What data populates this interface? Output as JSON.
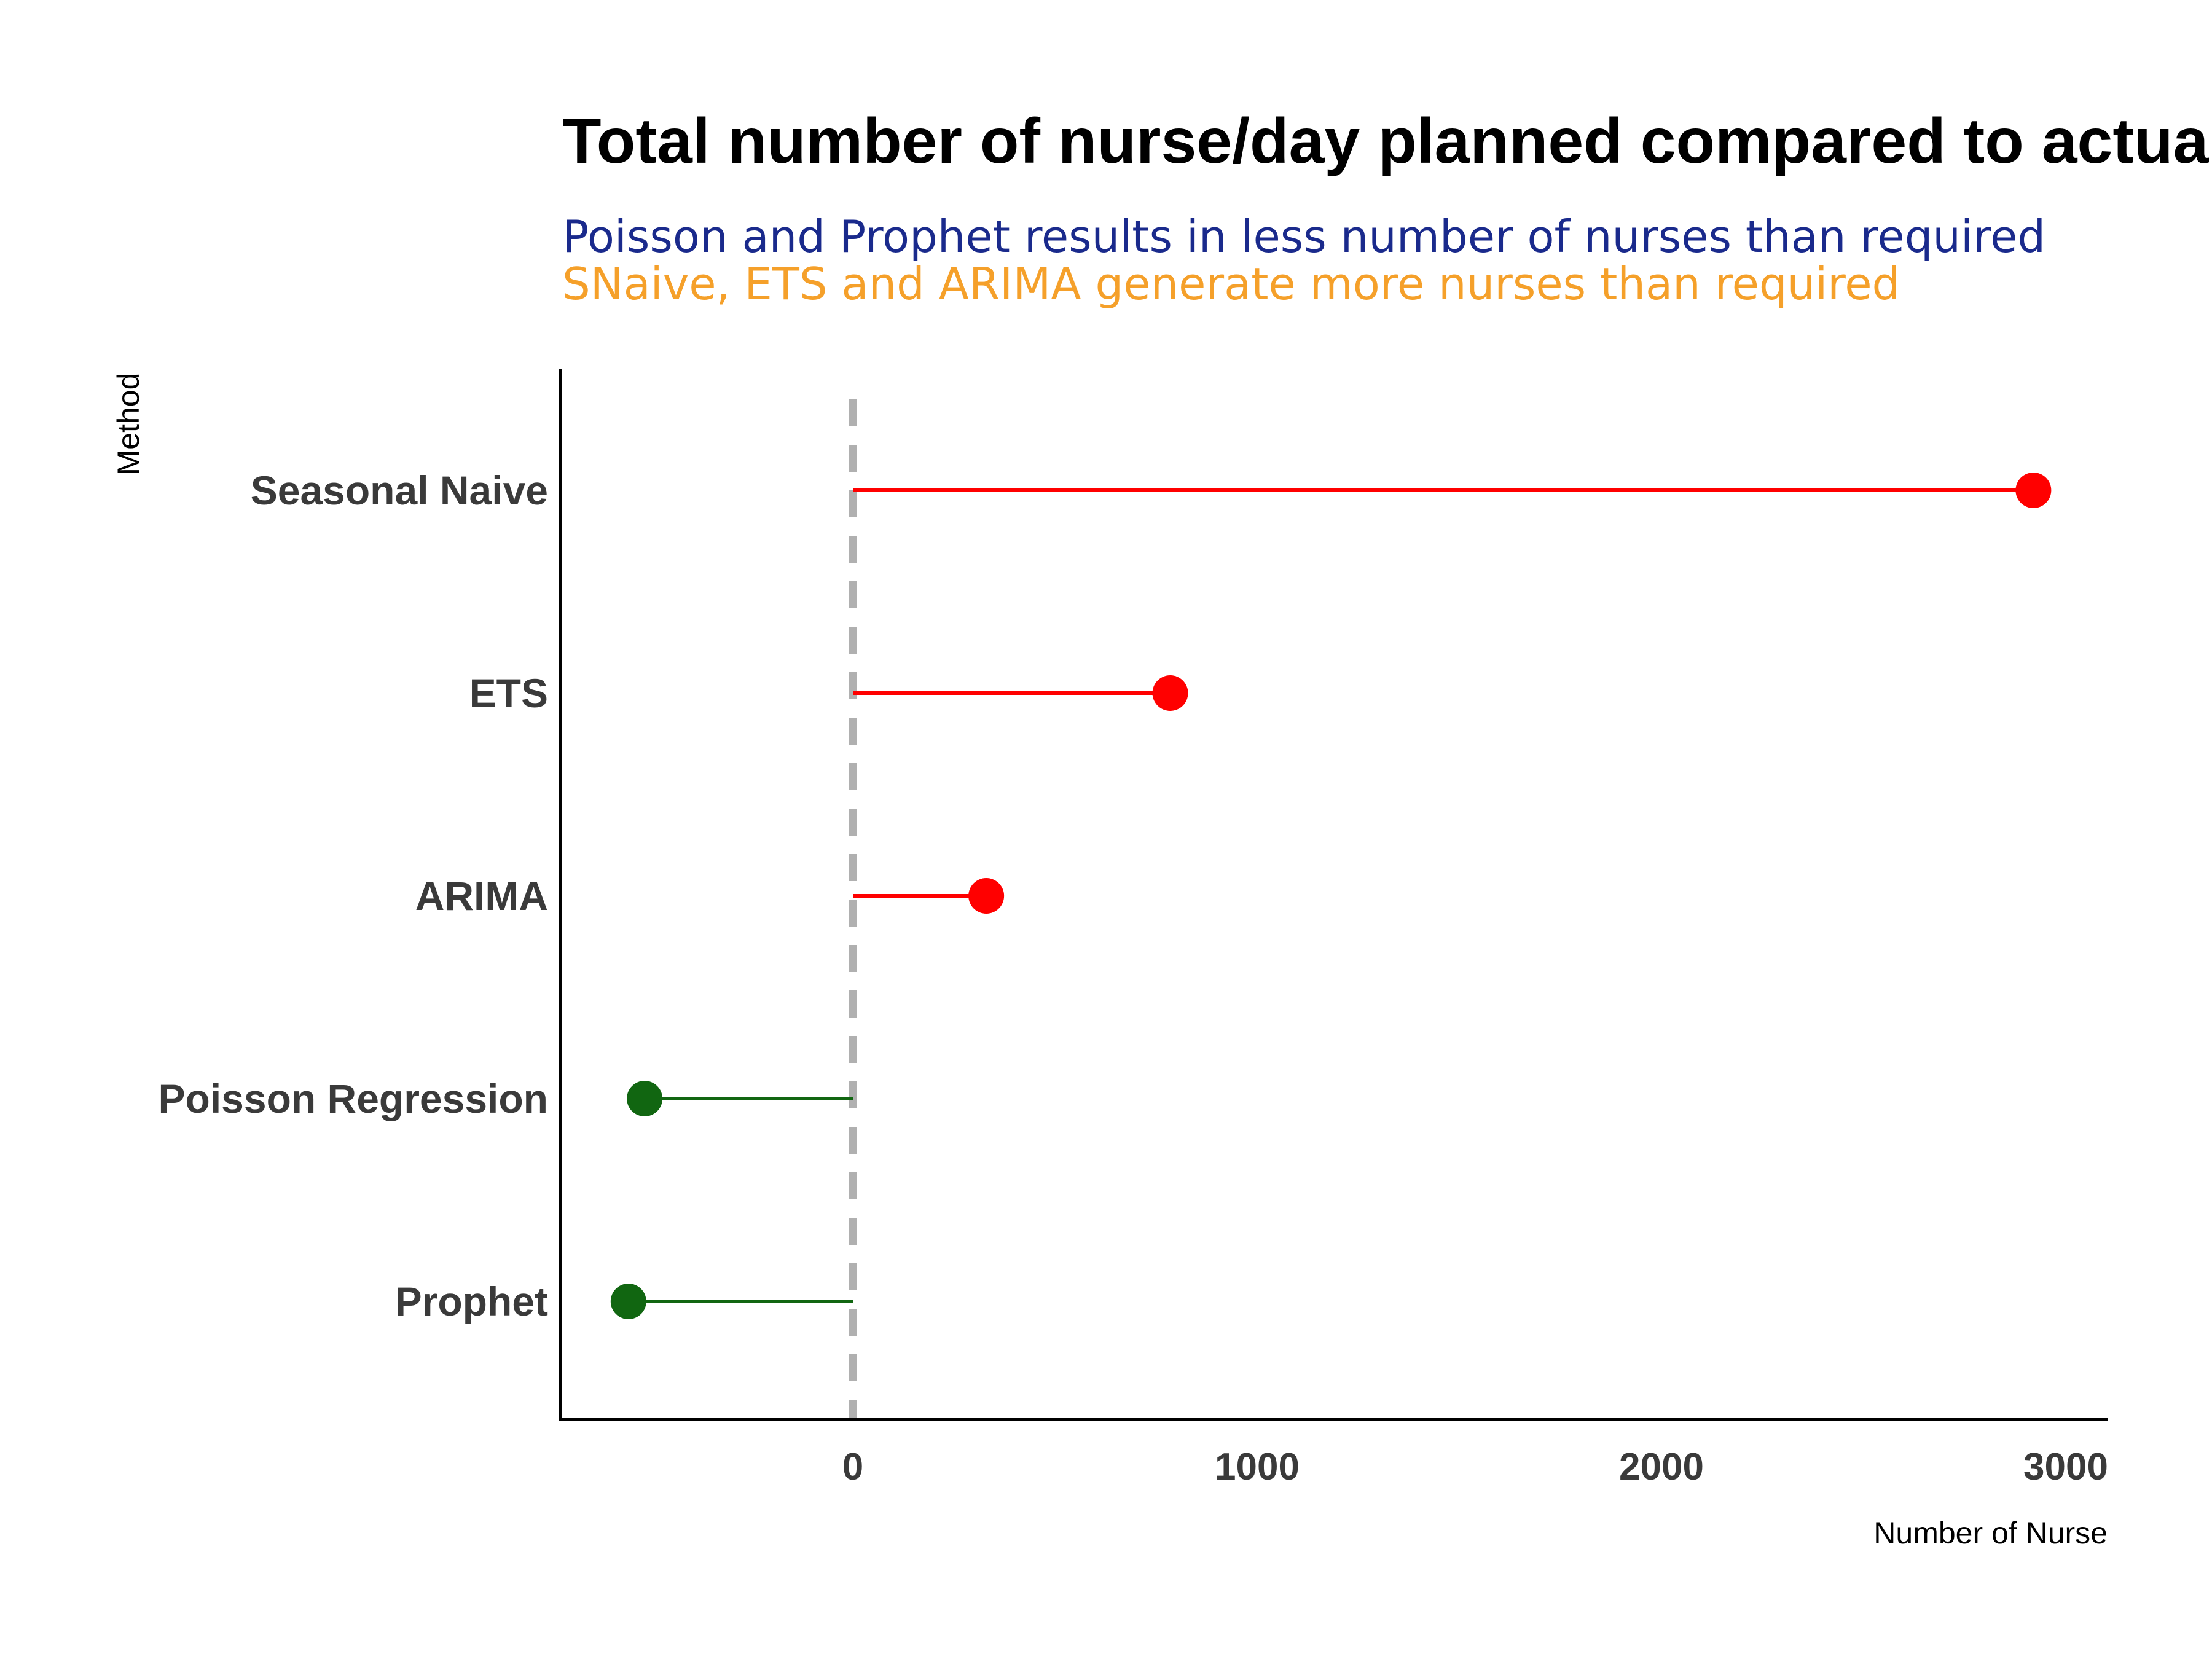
{
  "chart_data": {
    "type": "lollipop",
    "title": "Total number of nurse/day planned compared to actual",
    "subtitle_lines": [
      {
        "text": "Poisson and Prophet results in less number of nurses than required",
        "color": "#1a2a8c"
      },
      {
        "text": "SNaive, ETS and ARIMA generate more nurses than required",
        "color": "#f5a02a"
      }
    ],
    "xlabel": "Number of Nurse",
    "ylabel": "Method",
    "xlim": [
      -720,
      3100
    ],
    "x_ticks": [
      0,
      1000,
      2000,
      3000
    ],
    "x_tick_labels": [
      "0",
      "1000",
      "2000",
      "3000"
    ],
    "reference_line": 0,
    "categories": [
      "Seasonal Naive",
      "ETS",
      "ARIMA",
      "Poisson Regression",
      "Prophet"
    ],
    "values": [
      2920,
      785,
      330,
      -515,
      -555
    ],
    "colors": {
      "positive": "#ff0000",
      "negative": "#116611",
      "reference_line": "#b0b0b0",
      "axis": "#000000"
    },
    "grid": false,
    "legend": "none"
  }
}
